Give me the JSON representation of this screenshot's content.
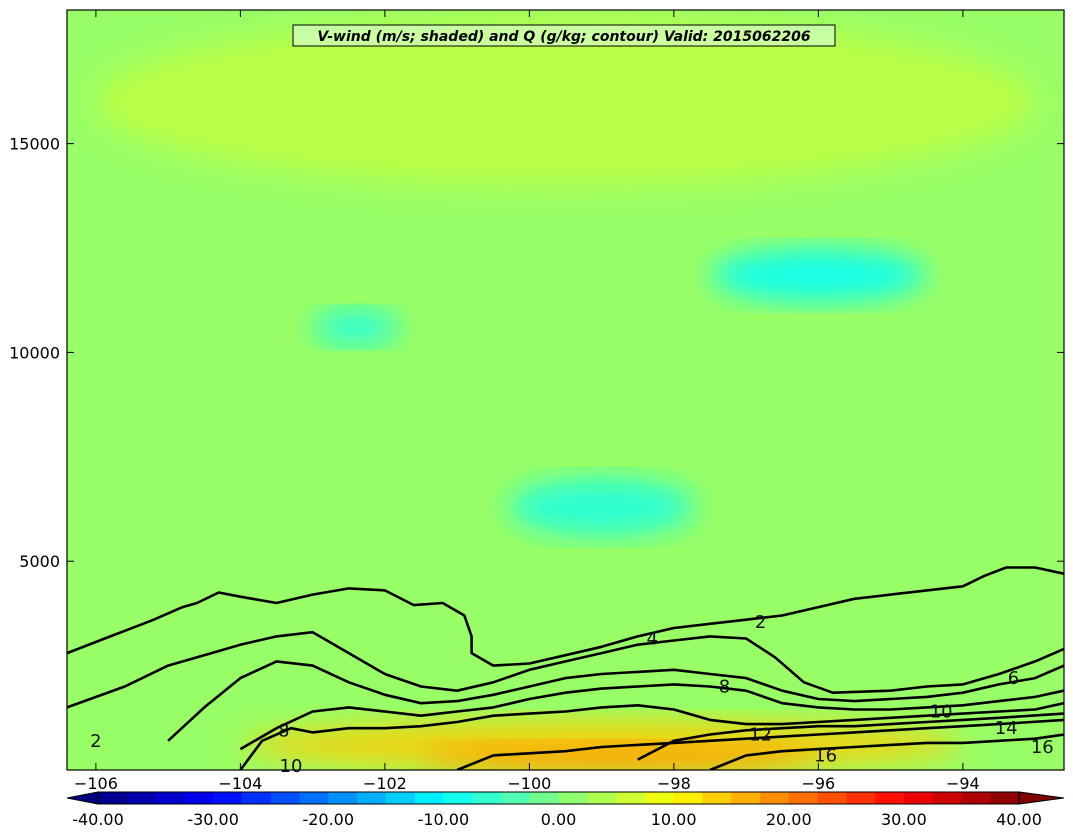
{
  "chart_data": {
    "type": "heatmap",
    "title": "V-wind (m/s; shaded) and Q (g/kg; contour) Valid: 2015062206",
    "xlabel": "",
    "ylabel": "",
    "xlim": [
      -106.4,
      -92.6
    ],
    "ylim": [
      0,
      18200
    ],
    "x_ticks": [
      -106,
      -104,
      -102,
      -100,
      -98,
      -96,
      -94
    ],
    "x_tick_labels": [
      "−106",
      "−104",
      "−102",
      "−100",
      "−98",
      "−96",
      "−94"
    ],
    "y_ticks": [
      5000,
      10000,
      15000
    ],
    "y_tick_labels": [
      "5000",
      "10000",
      "15000"
    ],
    "shaded_field": "V-wind (m/s)",
    "contour_field": "Q (g/kg)",
    "colorbar": {
      "min": -40,
      "max": 40,
      "step": 2.5,
      "extend": "both",
      "ticks": [
        -40,
        -30,
        -20,
        -10,
        0,
        10,
        20,
        30,
        40
      ],
      "tick_labels": [
        "-40.00",
        "-30.00",
        "-20.00",
        "-10.00",
        "0.00",
        "10.00",
        "20.00",
        "30.00",
        "40.00"
      ]
    },
    "shaded_regions": [
      {
        "description": "dominant background",
        "v_wind": 2
      },
      {
        "description": "upper troposphere weak southerly bands",
        "x": [
          -106,
          -93
        ],
        "y": [
          14000,
          18000
        ],
        "v_wind": 5
      },
      {
        "description": "negative core near -96.5",
        "x": [
          -97.5,
          -94.5
        ],
        "y": [
          11200,
          12500
        ],
        "v_wind": -10
      },
      {
        "description": "negative core near -99",
        "x": [
          -100.3,
          -97.7
        ],
        "y": [
          5600,
          7000
        ],
        "v_wind": -8
      },
      {
        "description": "negative pocket near -102.3",
        "x": [
          -103,
          -101.8
        ],
        "y": [
          10200,
          11000
        ],
        "v_wind": -9
      },
      {
        "description": "low-level jet",
        "x": [
          -104,
          -94
        ],
        "y": [
          0,
          1200
        ],
        "v_wind": 14,
        "max": 18
      }
    ],
    "contours": [
      {
        "level": 2,
        "points": [
          [
            -106.4,
            2800
          ],
          [
            -105.8,
            3200
          ],
          [
            -105.2,
            3600
          ],
          [
            -104.8,
            3900
          ],
          [
            -104.6,
            4000
          ],
          [
            -104.3,
            4250
          ],
          [
            -104,
            4150
          ],
          [
            -103.5,
            4000
          ],
          [
            -103,
            4200
          ],
          [
            -102.5,
            4350
          ],
          [
            -102,
            4300
          ],
          [
            -101.6,
            3950
          ],
          [
            -101.2,
            4000
          ],
          [
            -100.9,
            3700
          ],
          [
            -100.8,
            3200
          ],
          [
            -100.8,
            2800
          ],
          [
            -100.5,
            2500
          ],
          [
            -100,
            2550
          ],
          [
            -99.5,
            2750
          ],
          [
            -99,
            2950
          ],
          [
            -98.5,
            3200
          ],
          [
            -98,
            3400
          ],
          [
            -97.5,
            3500
          ],
          [
            -97,
            3600
          ],
          [
            -96.5,
            3700
          ],
          [
            -96,
            3900
          ],
          [
            -95.5,
            4100
          ],
          [
            -95,
            4200
          ],
          [
            -94.5,
            4300
          ],
          [
            -94,
            4400
          ],
          [
            -93.7,
            4650
          ],
          [
            -93.4,
            4850
          ],
          [
            -93,
            4850
          ],
          [
            -92.6,
            4700
          ]
        ]
      },
      {
        "level": 4,
        "points": [
          [
            -106.4,
            1500
          ],
          [
            -105.6,
            2000
          ],
          [
            -105,
            2500
          ],
          [
            -104.4,
            2800
          ],
          [
            -104,
            3000
          ],
          [
            -103.5,
            3200
          ],
          [
            -103,
            3300
          ],
          [
            -102.5,
            2800
          ],
          [
            -102,
            2300
          ],
          [
            -101.5,
            2000
          ],
          [
            -101,
            1900
          ],
          [
            -100.5,
            2100
          ],
          [
            -100,
            2400
          ],
          [
            -99.5,
            2600
          ],
          [
            -99,
            2800
          ],
          [
            -98.5,
            3000
          ],
          [
            -98,
            3100
          ],
          [
            -97.5,
            3200
          ],
          [
            -97,
            3150
          ],
          [
            -96.6,
            2700
          ],
          [
            -96.2,
            2100
          ],
          [
            -95.8,
            1850
          ],
          [
            -95,
            1900
          ],
          [
            -94.5,
            2000
          ],
          [
            -94,
            2050
          ],
          [
            -93.5,
            2300
          ],
          [
            -93,
            2600
          ],
          [
            -92.6,
            2900
          ]
        ]
      },
      {
        "level": 6,
        "points": [
          [
            -105,
            700
          ],
          [
            -104.5,
            1500
          ],
          [
            -104,
            2200
          ],
          [
            -103.5,
            2600
          ],
          [
            -103,
            2500
          ],
          [
            -102.5,
            2100
          ],
          [
            -102,
            1800
          ],
          [
            -101.5,
            1600
          ],
          [
            -101,
            1650
          ],
          [
            -100.5,
            1800
          ],
          [
            -100,
            2000
          ],
          [
            -99.5,
            2200
          ],
          [
            -99,
            2300
          ],
          [
            -98.5,
            2350
          ],
          [
            -98,
            2400
          ],
          [
            -97.5,
            2300
          ],
          [
            -97,
            2200
          ],
          [
            -96.5,
            1900
          ],
          [
            -96,
            1700
          ],
          [
            -95.5,
            1650
          ],
          [
            -95,
            1700
          ],
          [
            -94.5,
            1750
          ],
          [
            -94,
            1850
          ],
          [
            -93.5,
            2050
          ],
          [
            -93,
            2200
          ],
          [
            -92.6,
            2500
          ]
        ]
      },
      {
        "level": 8,
        "points": [
          [
            -104,
            500
          ],
          [
            -103.5,
            1000
          ],
          [
            -103,
            1400
          ],
          [
            -102.5,
            1500
          ],
          [
            -102,
            1400
          ],
          [
            -101.5,
            1300
          ],
          [
            -101,
            1400
          ],
          [
            -100.5,
            1500
          ],
          [
            -100,
            1700
          ],
          [
            -99.5,
            1850
          ],
          [
            -99,
            1950
          ],
          [
            -98.5,
            2000
          ],
          [
            -98,
            2050
          ],
          [
            -97.5,
            2000
          ],
          [
            -97,
            1900
          ],
          [
            -96.5,
            1600
          ],
          [
            -96,
            1500
          ],
          [
            -95.5,
            1450
          ],
          [
            -95,
            1450
          ],
          [
            -94.5,
            1500
          ],
          [
            -94,
            1550
          ],
          [
            -93.5,
            1650
          ],
          [
            -93,
            1750
          ],
          [
            -92.6,
            1900
          ]
        ]
      },
      {
        "level": 10,
        "points": [
          [
            -104,
            0
          ],
          [
            -103.7,
            700
          ],
          [
            -103.3,
            1000
          ],
          [
            -103,
            900
          ],
          [
            -102.5,
            1000
          ],
          [
            -102,
            1000
          ],
          [
            -101.5,
            1050
          ],
          [
            -101,
            1150
          ],
          [
            -100.5,
            1300
          ],
          [
            -100,
            1350
          ],
          [
            -99.5,
            1400
          ],
          [
            -99,
            1500
          ],
          [
            -98.5,
            1550
          ],
          [
            -98,
            1450
          ],
          [
            -97.5,
            1200
          ],
          [
            -97,
            1100
          ],
          [
            -96.5,
            1100
          ],
          [
            -96,
            1150
          ],
          [
            -95.5,
            1200
          ],
          [
            -95,
            1250
          ],
          [
            -94.5,
            1300
          ],
          [
            -94,
            1350
          ],
          [
            -93.5,
            1400
          ],
          [
            -93,
            1450
          ],
          [
            -92.6,
            1600
          ]
        ]
      },
      {
        "level": 12,
        "points": [
          [
            -98.5,
            250
          ],
          [
            -98,
            700
          ],
          [
            -97.5,
            850
          ],
          [
            -97,
            950
          ],
          [
            -96.5,
            1000
          ],
          [
            -96,
            1050
          ],
          [
            -95.5,
            1050
          ],
          [
            -95,
            1100
          ],
          [
            -94.5,
            1150
          ],
          [
            -94,
            1200
          ],
          [
            -93.5,
            1250
          ],
          [
            -92.6,
            1350
          ]
        ]
      },
      {
        "level": 14,
        "points": [
          [
            -101,
            0
          ],
          [
            -100.5,
            350
          ],
          [
            -100,
            400
          ],
          [
            -99.5,
            450
          ],
          [
            -99,
            550
          ],
          [
            -98.5,
            600
          ],
          [
            -98,
            650
          ],
          [
            -97.5,
            700
          ],
          [
            -97,
            750
          ],
          [
            -96.5,
            800
          ],
          [
            -96,
            850
          ],
          [
            -95.5,
            900
          ],
          [
            -95,
            950
          ],
          [
            -94.5,
            1000
          ],
          [
            -94,
            1050
          ],
          [
            -93.5,
            1100
          ],
          [
            -92.6,
            1200
          ]
        ]
      },
      {
        "level": 16,
        "points": [
          [
            -97.5,
            0
          ],
          [
            -97,
            350
          ],
          [
            -96.5,
            450
          ],
          [
            -96,
            500
          ],
          [
            -95.5,
            550
          ],
          [
            -95,
            600
          ],
          [
            -94.5,
            650
          ],
          [
            -94,
            650
          ],
          [
            -93.5,
            700
          ],
          [
            -93,
            750
          ],
          [
            -92.6,
            850
          ]
        ]
      }
    ],
    "contour_labels": [
      {
        "text": "2",
        "x": -96.8,
        "y": 3550
      },
      {
        "text": "4",
        "x": -98.3,
        "y": 3150
      },
      {
        "text": "6",
        "x": -93.3,
        "y": 2200
      },
      {
        "text": "8",
        "x": -97.3,
        "y": 2000
      },
      {
        "text": "10",
        "x": -94.3,
        "y": 1400
      },
      {
        "text": "12",
        "x": -96.8,
        "y": 850
      },
      {
        "text": "14",
        "x": -93.4,
        "y": 1000
      },
      {
        "text": "16",
        "x": -95.9,
        "y": 350
      },
      {
        "text": "16",
        "x": -92.9,
        "y": 550
      },
      {
        "text": "8",
        "x": -103.4,
        "y": 950
      },
      {
        "text": "10",
        "x": -103.3,
        "y": 100
      },
      {
        "text": "2",
        "x": -106.0,
        "y": 700
      }
    ]
  }
}
